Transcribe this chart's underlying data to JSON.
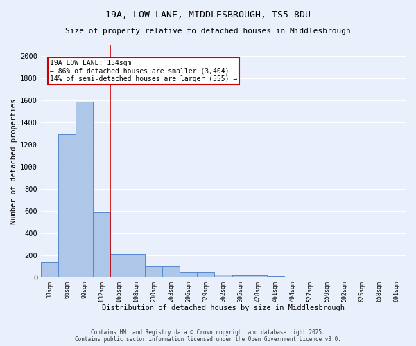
{
  "title1": "19A, LOW LANE, MIDDLESBROUGH, TS5 8DU",
  "title2": "Size of property relative to detached houses in Middlesbrough",
  "xlabel": "Distribution of detached houses by size in Middlesbrough",
  "ylabel": "Number of detached properties",
  "categories": [
    "33sqm",
    "66sqm",
    "99sqm",
    "132sqm",
    "165sqm",
    "198sqm",
    "230sqm",
    "263sqm",
    "296sqm",
    "329sqm",
    "362sqm",
    "395sqm",
    "428sqm",
    "461sqm",
    "494sqm",
    "527sqm",
    "559sqm",
    "592sqm",
    "625sqm",
    "658sqm",
    "691sqm"
  ],
  "values": [
    140,
    1295,
    1590,
    585,
    215,
    215,
    100,
    100,
    50,
    50,
    25,
    20,
    20,
    15,
    0,
    0,
    0,
    0,
    0,
    0,
    0
  ],
  "bar_color": "#aec6e8",
  "bar_edge_color": "#5588cc",
  "background_color": "#eaf0fb",
  "grid_color": "#ffffff",
  "vline_color": "#cc0000",
  "annotation_text": "19A LOW LANE: 154sqm\n← 86% of detached houses are smaller (3,404)\n14% of semi-detached houses are larger (555) →",
  "annotation_box_color": "white",
  "annotation_box_edge": "#cc0000",
  "ylim": [
    0,
    2100
  ],
  "yticks": [
    0,
    200,
    400,
    600,
    800,
    1000,
    1200,
    1400,
    1600,
    1800,
    2000
  ],
  "footer1": "Contains HM Land Registry data © Crown copyright and database right 2025.",
  "footer2": "Contains public sector information licensed under the Open Government Licence v3.0."
}
